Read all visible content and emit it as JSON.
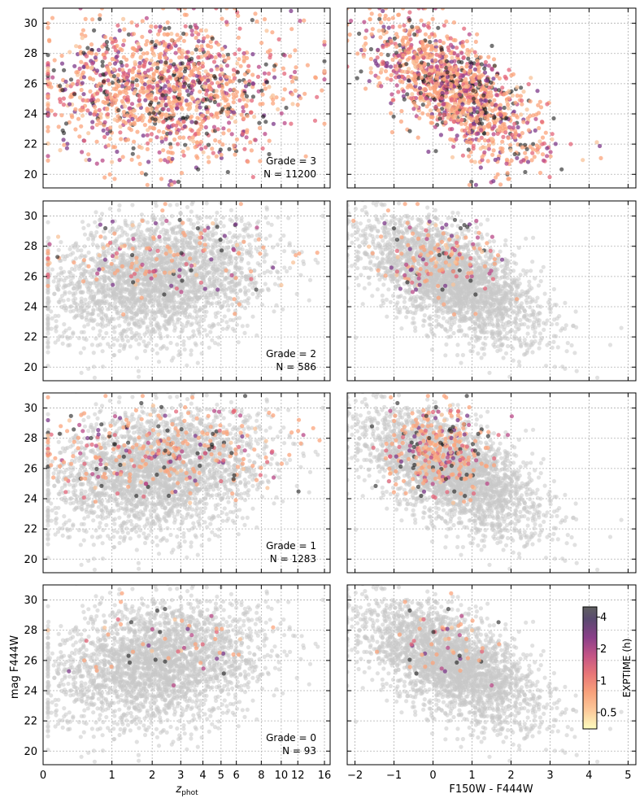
{
  "chart_data": {
    "type": "scatter",
    "layout": "4 rows x 2 columns, shared y-axis per row, shared x-axis per column",
    "left_x": {
      "label_main": "z",
      "label_sub": "phot",
      "scale": "non-linear (log(1+z))",
      "ticks": [
        "0",
        "1",
        "2",
        "3",
        "4",
        "5",
        "6",
        "8",
        "10",
        "12",
        "16"
      ],
      "range": [
        0,
        17
      ]
    },
    "right_x": {
      "label": "F150W - F444W",
      "ticks": [
        "−2",
        "−1",
        "0",
        "1",
        "2",
        "3",
        "4",
        "5"
      ],
      "range": [
        -2.2,
        5.2
      ]
    },
    "y": {
      "label": "mag F444W",
      "ticks": [
        "20",
        "22",
        "24",
        "26",
        "28",
        "30"
      ],
      "range": [
        19.1,
        31.0
      ]
    },
    "grid": true,
    "background_color": "#c8c8c8",
    "colorbar": {
      "label": "EXPTIME (h)",
      "ticks": [
        "0.5",
        "1",
        "2",
        "4"
      ],
      "colormap": "magma_r",
      "colors": [
        "#fcfdbf",
        "#fca50a",
        "#f8765c",
        "#e24d66",
        "#b5367a",
        "#822681",
        "#4f127b",
        "#000004"
      ]
    },
    "panels": [
      {
        "grade_text": "Grade = 3",
        "n_text": "N = 11200",
        "grade": 3,
        "n": 11200
      },
      {
        "grade_text": "Grade = 2",
        "n_text": "N = 586",
        "grade": 2,
        "n": 586
      },
      {
        "grade_text": "Grade = 1",
        "n_text": "N = 1283",
        "grade": 1,
        "n": 1283
      },
      {
        "grade_text": "Grade = 0",
        "n_text": "N = 93",
        "grade": 0,
        "n": 93
      }
    ]
  }
}
